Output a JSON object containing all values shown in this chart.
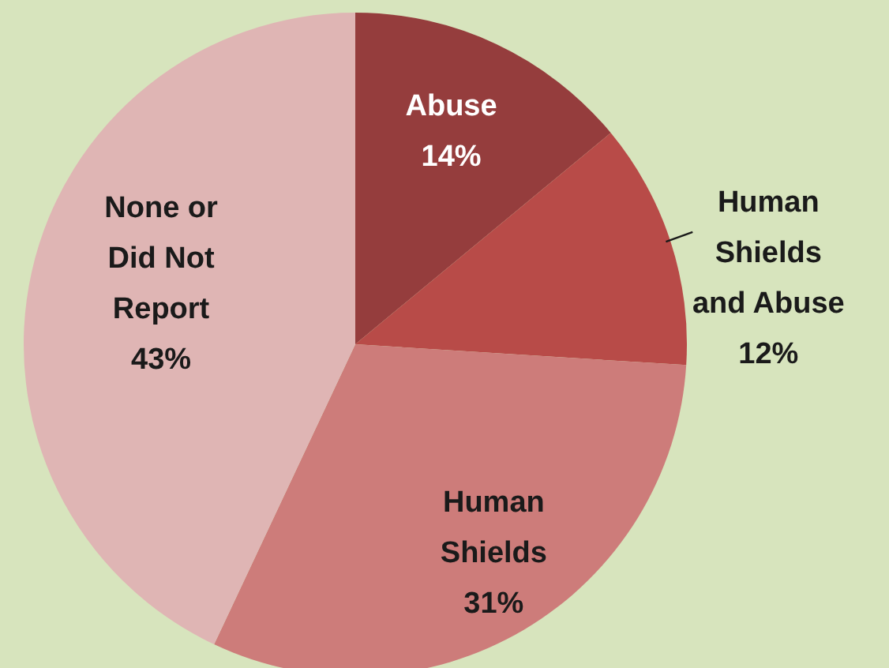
{
  "chart_data": {
    "type": "pie",
    "categories": [
      "Abuse",
      "Human Shields and Abuse",
      "Human Shields",
      "None or Did Not Report"
    ],
    "values": [
      14,
      12,
      31,
      43
    ],
    "colors": [
      "#953d3d",
      "#b84b48",
      "#cd7c7a",
      "#dfb5b4"
    ],
    "value_labels": [
      "14%",
      "12%",
      "31%",
      "43%"
    ]
  }
}
